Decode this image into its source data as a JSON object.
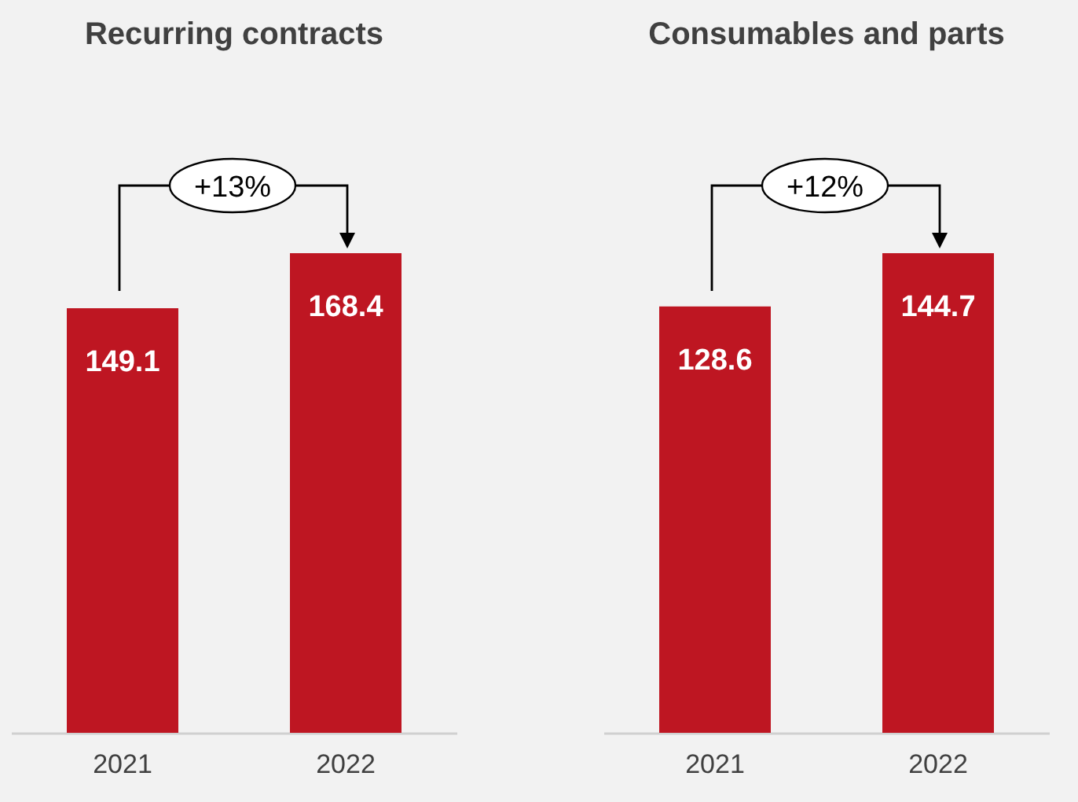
{
  "chart_data": [
    {
      "type": "bar",
      "title": "Recurring contracts",
      "categories": [
        "2021",
        "2022"
      ],
      "values": [
        149.1,
        168.4
      ],
      "color": "#be1622",
      "data_labels": true,
      "annotations": [
        "+13%"
      ]
    },
    {
      "type": "bar",
      "title": "Consumables and parts",
      "categories": [
        "2021",
        "2022"
      ],
      "values": [
        128.6,
        144.7
      ],
      "color": "#be1622",
      "data_labels": true,
      "annotations": [
        "+12%"
      ]
    }
  ]
}
